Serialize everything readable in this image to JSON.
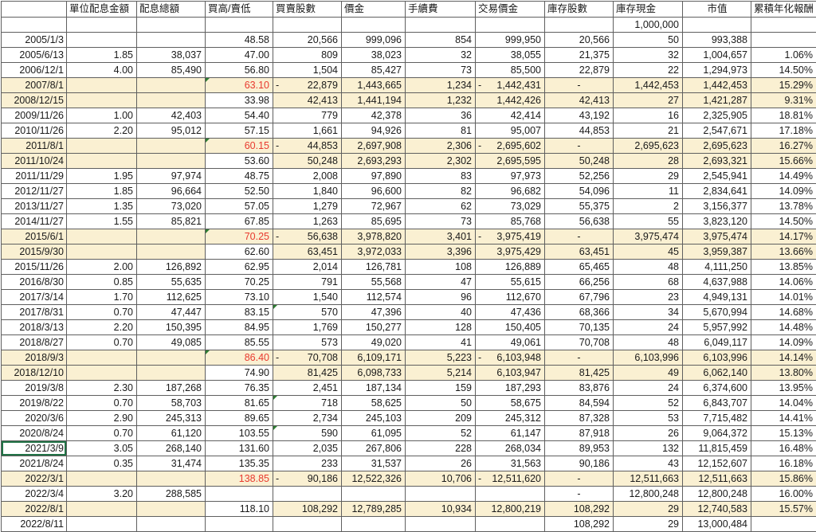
{
  "colors": {
    "row_highlight": "#faf0d2",
    "sell_price_text": "#e8392e",
    "corner_flag": "#2e7d32",
    "selected_cell_border": "#217346",
    "grid_line": "#5f5f5f"
  },
  "table": {
    "columns": [
      {
        "key": "date",
        "label": ""
      },
      {
        "key": "unit",
        "label": "單位配息金額"
      },
      {
        "key": "total",
        "label": "配息總額"
      },
      {
        "key": "price",
        "label": "買高/賣低"
      },
      {
        "key": "shares",
        "label": "買賣股數"
      },
      {
        "key": "amount",
        "label": "價金"
      },
      {
        "key": "fee",
        "label": "手續費"
      },
      {
        "key": "trade",
        "label": "交易價金"
      },
      {
        "key": "stock",
        "label": "庫存股數"
      },
      {
        "key": "cash",
        "label": "庫存現金"
      },
      {
        "key": "value",
        "label": "市值"
      },
      {
        "key": "ret",
        "label": "累積年化報酬"
      }
    ],
    "rows": [
      {
        "date": "",
        "cash": "1,000,000"
      },
      {
        "date": "2005/1/3",
        "price": "48.58",
        "shares": "20,566",
        "amount": "999,096",
        "fee": "854",
        "trade": "999,950",
        "stock": "20,566",
        "cash": "50",
        "value": "993,388"
      },
      {
        "date": "2005/6/13",
        "unit": "1.85",
        "total": "38,037",
        "price": "47.00",
        "shares": "809",
        "amount": "38,023",
        "fee": "32",
        "trade": "38,055",
        "stock": "21,375",
        "cash": "32",
        "value": "1,004,657",
        "ret": "1.06%"
      },
      {
        "date": "2006/12/1",
        "unit": "4.00",
        "total": "85,490",
        "price": "56.80",
        "shares": "1,504",
        "amount": "85,427",
        "fee": "73",
        "trade": "85,500",
        "stock": "22,879",
        "cash": "22",
        "value": "1,294,973",
        "ret": "14.50%"
      },
      {
        "date": "2007/8/1",
        "hl": 1,
        "red": 1,
        "tri_price": 1,
        "price": "63.10",
        "neg_shares": 1,
        "shares": "22,879",
        "amount": "1,443,665",
        "fee": "1,234",
        "neg_trade": 1,
        "trade": "1,442,431",
        "stock": "-",
        "cash": "1,442,453",
        "value": "1,442,453",
        "ret": "15.29%"
      },
      {
        "date": "2008/12/15",
        "hl": 1,
        "white_price": 1,
        "price": "33.98",
        "shares": "42,413",
        "amount": "1,441,194",
        "fee": "1,232",
        "trade": "1,442,426",
        "stock": "42,413",
        "cash": "27",
        "value": "1,421,287",
        "ret": "9.31%"
      },
      {
        "date": "2009/11/26",
        "unit": "1.00",
        "total": "42,403",
        "price": "54.40",
        "shares": "779",
        "amount": "42,378",
        "fee": "36",
        "trade": "42,414",
        "stock": "43,192",
        "cash": "16",
        "value": "2,325,905",
        "ret": "18.81%"
      },
      {
        "date": "2010/11/26",
        "unit": "2.20",
        "total": "95,012",
        "price": "57.15",
        "shares": "1,661",
        "amount": "94,926",
        "fee": "81",
        "trade": "95,007",
        "stock": "44,853",
        "cash": "21",
        "value": "2,547,671",
        "ret": "17.18%"
      },
      {
        "date": "2011/8/1",
        "hl": 1,
        "red": 1,
        "tri_price": 1,
        "price": "60.15",
        "neg_shares": 1,
        "shares": "44,853",
        "amount": "2,697,908",
        "fee": "2,306",
        "neg_trade": 1,
        "trade": "2,695,602",
        "stock": "-",
        "cash": "2,695,623",
        "value": "2,695,623",
        "ret": "16.27%"
      },
      {
        "date": "2011/10/24",
        "hl": 1,
        "white_price": 1,
        "price": "53.60",
        "shares": "50,248",
        "amount": "2,693,293",
        "fee": "2,302",
        "trade": "2,695,595",
        "stock": "50,248",
        "cash": "28",
        "value": "2,693,321",
        "ret": "15.66%"
      },
      {
        "date": "2011/11/29",
        "unit": "1.95",
        "total": "97,974",
        "price": "48.75",
        "shares": "2,008",
        "amount": "97,890",
        "fee": "83",
        "trade": "97,973",
        "stock": "52,256",
        "cash": "29",
        "value": "2,545,941",
        "ret": "14.49%"
      },
      {
        "date": "2012/11/27",
        "unit": "1.85",
        "total": "96,664",
        "price": "52.50",
        "shares": "1,840",
        "amount": "96,600",
        "fee": "82",
        "trade": "96,682",
        "stock": "54,096",
        "cash": "11",
        "value": "2,834,641",
        "ret": "14.09%"
      },
      {
        "date": "2013/11/27",
        "unit": "1.35",
        "total": "73,020",
        "price": "57.05",
        "shares": "1,279",
        "amount": "72,967",
        "fee": "62",
        "trade": "73,029",
        "stock": "55,375",
        "cash": "2",
        "value": "3,156,377",
        "ret": "13.78%"
      },
      {
        "date": "2014/11/27",
        "unit": "1.55",
        "total": "85,821",
        "price": "67.85",
        "shares": "1,263",
        "amount": "85,695",
        "fee": "73",
        "trade": "85,768",
        "stock": "56,638",
        "cash": "55",
        "value": "3,823,120",
        "ret": "14.50%"
      },
      {
        "date": "2015/6/1",
        "hl": 1,
        "red": 1,
        "tri_price": 1,
        "price": "70.25",
        "neg_shares": 1,
        "shares": "56,638",
        "amount": "3,978,820",
        "fee": "3,401",
        "neg_trade": 1,
        "trade": "3,975,419",
        "stock": "-",
        "cash": "3,975,474",
        "value": "3,975,474",
        "ret": "14.17%"
      },
      {
        "date": "2015/9/30",
        "hl": 1,
        "white_price": 1,
        "price": "62.60",
        "shares": "63,451",
        "amount": "3,972,033",
        "fee": "3,396",
        "trade": "3,975,429",
        "stock": "63,451",
        "cash": "45",
        "value": "3,959,387",
        "ret": "13.66%"
      },
      {
        "date": "2015/11/26",
        "unit": "2.00",
        "total": "126,892",
        "price": "62.95",
        "shares": "2,014",
        "amount": "126,781",
        "fee": "108",
        "trade": "126,889",
        "stock": "65,465",
        "cash": "48",
        "value": "4,111,250",
        "ret": "13.85%"
      },
      {
        "date": "2016/8/30",
        "unit": "0.85",
        "total": "55,635",
        "price": "70.25",
        "shares": "791",
        "amount": "55,568",
        "fee": "47",
        "trade": "55,615",
        "stock": "66,256",
        "cash": "68",
        "value": "4,637,988",
        "ret": "14.06%"
      },
      {
        "date": "2017/3/14",
        "unit": "1.70",
        "total": "112,625",
        "price": "73.10",
        "shares": "1,540",
        "amount": "112,574",
        "fee": "96",
        "trade": "112,670",
        "stock": "67,796",
        "cash": "23",
        "value": "4,949,131",
        "ret": "14.01%"
      },
      {
        "date": "2017/8/31",
        "unit": "0.70",
        "total": "47,447",
        "price": "83.15",
        "tri_shares": 1,
        "shares": "570",
        "amount": "47,396",
        "fee": "40",
        "trade": "47,436",
        "stock": "68,366",
        "cash": "34",
        "value": "5,670,994",
        "ret": "14.68%"
      },
      {
        "date": "2018/3/13",
        "unit": "2.20",
        "total": "150,395",
        "price": "84.95",
        "shares": "1,769",
        "amount": "150,277",
        "fee": "128",
        "trade": "150,405",
        "stock": "70,135",
        "cash": "24",
        "value": "5,957,992",
        "ret": "14.48%"
      },
      {
        "date": "2018/8/27",
        "unit": "0.70",
        "total": "49,085",
        "price": "85.55",
        "shares": "573",
        "amount": "49,020",
        "fee": "41",
        "trade": "49,061",
        "stock": "70,708",
        "cash": "48",
        "value": "6,049,117",
        "ret": "14.09%"
      },
      {
        "date": "2018/9/3",
        "hl": 1,
        "red": 1,
        "tri_price": 1,
        "price": "86.40",
        "neg_shares": 1,
        "shares": "70,708",
        "amount": "6,109,171",
        "fee": "5,223",
        "neg_trade": 1,
        "trade": "6,103,948",
        "stock": "-",
        "cash": "6,103,996",
        "value": "6,103,996",
        "ret": "14.14%"
      },
      {
        "date": "2018/12/10",
        "hl": 1,
        "white_price": 1,
        "price": "74.90",
        "shares": "81,425",
        "amount": "6,098,733",
        "fee": "5,214",
        "trade": "6,103,947",
        "stock": "81,425",
        "cash": "49",
        "value": "6,062,140",
        "ret": "13.80%"
      },
      {
        "date": "2019/3/8",
        "unit": "2.30",
        "total": "187,268",
        "price": "76.35",
        "shares": "2,451",
        "amount": "187,134",
        "fee": "159",
        "trade": "187,293",
        "stock": "83,876",
        "cash": "24",
        "value": "6,374,600",
        "ret": "13.95%"
      },
      {
        "date": "2019/8/22",
        "unit": "0.70",
        "total": "58,703",
        "price": "81.65",
        "tri_shares": 1,
        "shares": "718",
        "amount": "58,625",
        "fee": "50",
        "trade": "58,675",
        "stock": "84,594",
        "cash": "52",
        "value": "6,843,707",
        "ret": "14.04%"
      },
      {
        "date": "2020/3/6",
        "unit": "2.90",
        "total": "245,313",
        "price": "89.65",
        "shares": "2,734",
        "amount": "245,103",
        "fee": "209",
        "trade": "245,312",
        "stock": "87,328",
        "cash": "53",
        "value": "7,715,482",
        "ret": "14.41%"
      },
      {
        "date": "2020/8/24",
        "unit": "0.70",
        "total": "61,120",
        "price": "103.55",
        "tri_shares": 1,
        "shares": "590",
        "amount": "61,095",
        "fee": "52",
        "trade": "61,147",
        "stock": "87,918",
        "cash": "26",
        "value": "9,064,372",
        "ret": "15.13%"
      },
      {
        "date": "2021/3/9",
        "sel": 1,
        "unit": "3.05",
        "total": "268,140",
        "price": "131.60",
        "shares": "2,035",
        "amount": "267,806",
        "fee": "228",
        "trade": "268,034",
        "stock": "89,953",
        "cash": "132",
        "value": "11,815,459",
        "ret": "16.48%"
      },
      {
        "date": "2021/8/24",
        "unit": "0.35",
        "total": "31,474",
        "price": "135.35",
        "shares": "233",
        "amount": "31,537",
        "fee": "26",
        "trade": "31,563",
        "stock": "90,186",
        "cash": "43",
        "value": "12,152,607",
        "ret": "16.18%"
      },
      {
        "date": "2022/3/1",
        "hl": 1,
        "red": 1,
        "price": "138.85",
        "neg_shares": 1,
        "shares": "90,186",
        "amount": "12,522,326",
        "fee": "10,706",
        "neg_trade": 1,
        "trade": "12,511,620",
        "stock": "-",
        "cash": "12,511,663",
        "value": "12,511,663",
        "ret": "15.86%"
      },
      {
        "date": "2022/3/4",
        "unit": "3.20",
        "total": "288,585",
        "stock": "-",
        "cash": "12,800,248",
        "value": "12,800,248",
        "ret": "16.00%"
      },
      {
        "date": "2022/8/1",
        "hl": 1,
        "white_price": 1,
        "price": "118.10",
        "shares": "108,292",
        "amount": "12,789,285",
        "fee": "10,934",
        "trade": "12,800,219",
        "stock": "108,292",
        "cash": "29",
        "value": "12,740,583",
        "ret": "15.57%"
      },
      {
        "date": "2022/8/11",
        "stock": "108,292",
        "cash": "29",
        "value": "13,000,484"
      }
    ]
  }
}
